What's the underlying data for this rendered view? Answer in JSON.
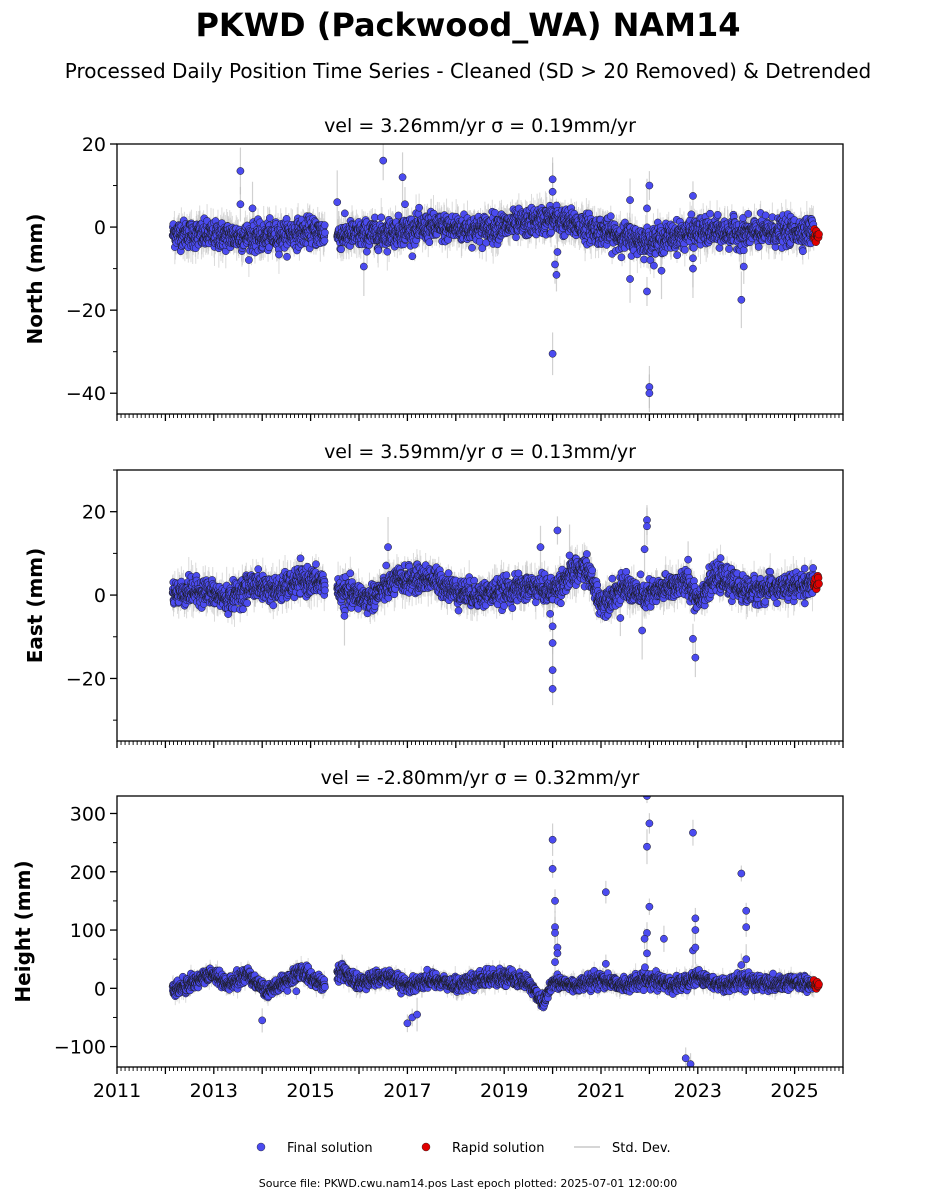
{
  "figure": {
    "title": "PKWD (Packwood_WA) NAM14",
    "subtitle": "Processed Daily Position Time Series - Cleaned (SD > 20 Removed) & Detrended",
    "footer": "Source file: PKWD.cwu.nam14.pos  Last epoch plotted: 2025-07-01 12:00:00",
    "legend": {
      "placement": "bottom-center",
      "items": [
        {
          "label": "Final solution",
          "color": "#4b4bf0",
          "marker": "dot"
        },
        {
          "label": "Rapid solution",
          "color": "#e00000",
          "marker": "dot"
        },
        {
          "label": "Std. Dev.",
          "color": "#c8c8c8",
          "marker": "line"
        }
      ]
    },
    "colors": {
      "final": "#4b4bf0",
      "rapid": "#e00000",
      "stddev": "#bdbdbd",
      "edge": "#1a1a1a"
    }
  },
  "chart_data": [
    {
      "type": "scatter",
      "title": "vel = 3.26mm/yr   σ = 0.19mm/yr",
      "ylabel": "North (mm)",
      "xlim": [
        2011.0,
        2026.0
      ],
      "ylim": [
        -45,
        20
      ],
      "yticks": [
        20,
        0,
        -20,
        -40
      ],
      "xticks": [],
      "xtick_labels_visible": false,
      "gaps": [
        [
          2015.3,
          2015.5
        ]
      ],
      "segments": [
        {
          "start": 2012.15,
          "end": 2015.3
        },
        {
          "start": 2015.55,
          "end": 2025.4
        }
      ],
      "trend": [
        [
          2012.15,
          -1.5
        ],
        [
          2013.0,
          -2.0
        ],
        [
          2014.0,
          -2.5
        ],
        [
          2015.0,
          -1.0
        ],
        [
          2015.6,
          -2.0
        ],
        [
          2016.5,
          -1.5
        ],
        [
          2017.5,
          0.0
        ],
        [
          2018.5,
          -0.5
        ],
        [
          2019.5,
          1.0
        ],
        [
          2020.0,
          2.0
        ],
        [
          2020.7,
          0.0
        ],
        [
          2021.5,
          -2.5
        ],
        [
          2022.0,
          -3.5
        ],
        [
          2022.6,
          -2.0
        ],
        [
          2023.0,
          -1.0
        ],
        [
          2024.0,
          -1.5
        ],
        [
          2025.0,
          -1.0
        ],
        [
          2025.4,
          -1.0
        ]
      ],
      "scatter_sd": 1.6,
      "outliers": [
        [
          2013.55,
          13.5
        ],
        [
          2013.55,
          5.5
        ],
        [
          2013.8,
          4.5
        ],
        [
          2015.55,
          6.0
        ],
        [
          2016.1,
          -9.5
        ],
        [
          2016.5,
          16.0
        ],
        [
          2016.9,
          12.0
        ],
        [
          2016.95,
          5.5
        ],
        [
          2020.0,
          11.5
        ],
        [
          2020.0,
          8.5
        ],
        [
          2020.05,
          -9.0
        ],
        [
          2020.08,
          -11.5
        ],
        [
          2020.0,
          -30.5
        ],
        [
          2020.1,
          -6.0
        ],
        [
          2021.6,
          6.5
        ],
        [
          2021.6,
          -12.5
        ],
        [
          2022.0,
          10.0
        ],
        [
          2021.95,
          4.5
        ],
        [
          2021.95,
          -15.5
        ],
        [
          2022.0,
          -38.5
        ],
        [
          2022.0,
          -40.0
        ],
        [
          2022.25,
          -10.5
        ],
        [
          2022.9,
          7.5
        ],
        [
          2022.9,
          -7.5
        ],
        [
          2022.9,
          -10.0
        ],
        [
          2023.95,
          -9.5
        ],
        [
          2023.9,
          -17.5
        ]
      ],
      "rapid": {
        "start": 2025.4,
        "end": 2025.5,
        "y": -2.0
      }
    },
    {
      "type": "scatter",
      "title": "vel = 3.59mm/yr   σ = 0.13mm/yr",
      "ylabel": "East (mm)",
      "xlim": [
        2011.0,
        2026.0
      ],
      "ylim": [
        -35,
        30
      ],
      "yticks": [
        20,
        0,
        -20
      ],
      "xticks": [],
      "xtick_labels_visible": false,
      "gaps": [
        [
          2015.3,
          2015.5
        ]
      ],
      "segments": [
        {
          "start": 2012.15,
          "end": 2015.3
        },
        {
          "start": 2015.55,
          "end": 2025.4
        }
      ],
      "trend": [
        [
          2012.15,
          0.5
        ],
        [
          2012.8,
          1.0
        ],
        [
          2013.3,
          -1.0
        ],
        [
          2013.8,
          2.5
        ],
        [
          2014.3,
          1.0
        ],
        [
          2014.8,
          3.5
        ],
        [
          2015.3,
          3.0
        ],
        [
          2015.6,
          1.0
        ],
        [
          2016.2,
          -1.0
        ],
        [
          2016.8,
          3.5
        ],
        [
          2017.5,
          4.0
        ],
        [
          2018.0,
          1.0
        ],
        [
          2018.5,
          0.0
        ],
        [
          2019.0,
          1.0
        ],
        [
          2019.6,
          2.0
        ],
        [
          2020.0,
          1.0
        ],
        [
          2020.4,
          5.0
        ],
        [
          2020.7,
          6.5
        ],
        [
          2021.0,
          -2.0
        ],
        [
          2021.5,
          2.0
        ],
        [
          2021.9,
          -0.5
        ],
        [
          2022.4,
          2.0
        ],
        [
          2022.8,
          3.0
        ],
        [
          2023.0,
          -1.0
        ],
        [
          2023.4,
          4.5
        ],
        [
          2024.0,
          1.0
        ],
        [
          2025.0,
          2.0
        ],
        [
          2025.4,
          3.0
        ]
      ],
      "scatter_sd": 1.5,
      "outliers": [
        [
          2016.6,
          11.5
        ],
        [
          2015.7,
          -5.0
        ],
        [
          2019.75,
          11.5
        ],
        [
          2019.95,
          -4.5
        ],
        [
          2020.0,
          -7.5
        ],
        [
          2020.0,
          -11.5
        ],
        [
          2020.0,
          -18.0
        ],
        [
          2020.0,
          -22.5
        ],
        [
          2020.1,
          15.5
        ],
        [
          2021.95,
          18.0
        ],
        [
          2021.95,
          16.5
        ],
        [
          2021.9,
          11.0
        ],
        [
          2021.85,
          -8.5
        ],
        [
          2022.8,
          8.5
        ],
        [
          2022.9,
          -10.5
        ],
        [
          2022.95,
          -15.0
        ],
        [
          2021.4,
          -5.5
        ],
        [
          2020.35,
          9.5
        ]
      ],
      "rapid": {
        "start": 2025.4,
        "end": 2025.5,
        "y": 3.0
      }
    },
    {
      "type": "scatter",
      "title": "vel = -2.80mm/yr   σ = 0.32mm/yr",
      "ylabel": "Height (mm)",
      "xlim": [
        2011.0,
        2026.0
      ],
      "ylim": [
        -135,
        330
      ],
      "yticks": [
        300,
        200,
        100,
        0,
        -100
      ],
      "xticks": [
        2011,
        2013,
        2015,
        2017,
        2019,
        2021,
        2023,
        2025
      ],
      "xtick_labels_visible": true,
      "gaps": [
        [
          2015.3,
          2015.5
        ]
      ],
      "segments": [
        {
          "start": 2012.15,
          "end": 2015.3
        },
        {
          "start": 2015.55,
          "end": 2025.4
        }
      ],
      "trend": [
        [
          2012.15,
          -5
        ],
        [
          2012.6,
          12
        ],
        [
          2013.0,
          25
        ],
        [
          2013.3,
          5
        ],
        [
          2013.7,
          25
        ],
        [
          2014.1,
          -5
        ],
        [
          2014.5,
          10
        ],
        [
          2014.8,
          30
        ],
        [
          2015.3,
          5
        ],
        [
          2015.6,
          30
        ],
        [
          2016.0,
          10
        ],
        [
          2016.5,
          20
        ],
        [
          2017.0,
          5
        ],
        [
          2017.5,
          15
        ],
        [
          2018.0,
          5
        ],
        [
          2018.5,
          15
        ],
        [
          2019.0,
          20
        ],
        [
          2019.5,
          10
        ],
        [
          2019.8,
          -25
        ],
        [
          2020.0,
          10
        ],
        [
          2020.5,
          5
        ],
        [
          2021.0,
          15
        ],
        [
          2021.5,
          5
        ],
        [
          2022.0,
          15
        ],
        [
          2022.5,
          5
        ],
        [
          2023.0,
          20
        ],
        [
          2023.5,
          5
        ],
        [
          2024.0,
          15
        ],
        [
          2024.5,
          5
        ],
        [
          2025.0,
          10
        ],
        [
          2025.4,
          5
        ]
      ],
      "scatter_sd": 6,
      "outliers": [
        [
          2014.0,
          -55
        ],
        [
          2017.0,
          -60
        ],
        [
          2017.1,
          -50
        ],
        [
          2017.2,
          -45
        ],
        [
          2020.0,
          255
        ],
        [
          2020.0,
          205
        ],
        [
          2020.05,
          150
        ],
        [
          2020.05,
          105
        ],
        [
          2020.05,
          95
        ],
        [
          2020.1,
          70
        ],
        [
          2020.1,
          60
        ],
        [
          2020.05,
          45
        ],
        [
          2021.1,
          165
        ],
        [
          2021.1,
          42
        ],
        [
          2021.95,
          330
        ],
        [
          2022.0,
          283
        ],
        [
          2021.95,
          243
        ],
        [
          2022.0,
          140
        ],
        [
          2021.95,
          95
        ],
        [
          2021.9,
          85
        ],
        [
          2021.95,
          60
        ],
        [
          2022.3,
          85
        ],
        [
          2022.75,
          -120
        ],
        [
          2022.85,
          -130
        ],
        [
          2022.9,
          267
        ],
        [
          2022.95,
          120
        ],
        [
          2022.95,
          100
        ],
        [
          2022.9,
          65
        ],
        [
          2022.95,
          70
        ],
        [
          2023.9,
          197
        ],
        [
          2024.0,
          133
        ],
        [
          2024.0,
          105
        ],
        [
          2024.0,
          50
        ],
        [
          2023.9,
          40
        ]
      ],
      "rapid": {
        "start": 2025.4,
        "end": 2025.5,
        "y": 5.0
      }
    }
  ]
}
